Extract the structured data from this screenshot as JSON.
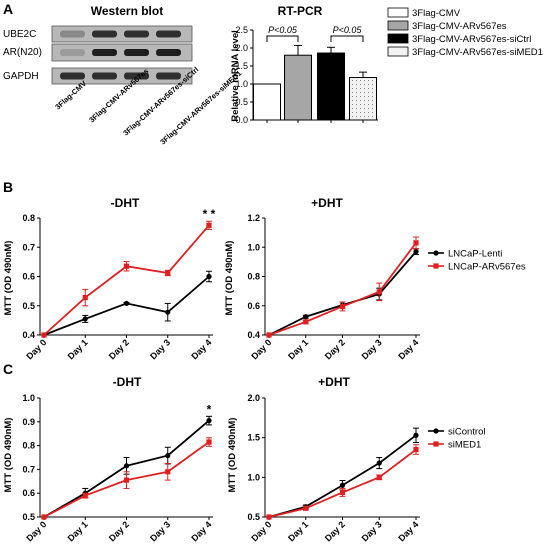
{
  "panels": {
    "a": "A",
    "b": "B",
    "c": "C"
  },
  "western": {
    "title": "Western blot",
    "rows": [
      "UBE2C",
      "AR(N20)",
      "GAPDH"
    ],
    "lanes": [
      "3Flag-CMV",
      "3Flag-CMV-ARv567es",
      "3Flag-CMV-ARv567es-siCtrl",
      "3Flag-CMV-ARv567es-siMED1"
    ],
    "band_intensity": [
      [
        0.35,
        0.85,
        0.85,
        0.85
      ],
      [
        0.25,
        0.95,
        0.95,
        0.95
      ],
      [
        0.85,
        0.85,
        0.85,
        0.85
      ]
    ]
  },
  "chart_data": [
    {
      "id": "rtpcr",
      "type": "bar",
      "title": "RT-PCR",
      "ylabel": "Relative mRNA level",
      "ylim": [
        0,
        2.5
      ],
      "yticks": [
        "0.0",
        "0.5",
        "1.0",
        "1.5",
        "2.0",
        "2.5"
      ],
      "categories": [
        "3Flag-CMV",
        "3Flag-CMV-ARv567es",
        "3Flag-CMV-ARv567es-siCtrl",
        "3Flag-CMV-ARv567es-siMED1"
      ],
      "values": [
        1.0,
        1.8,
        1.86,
        1.18
      ],
      "errors": [
        0.0,
        0.27,
        0.16,
        0.15
      ],
      "fills": [
        "#ffffff",
        "#a6a6a6",
        "#000000",
        "#f2f2f2"
      ],
      "annotations": [
        {
          "text": "P<0.05",
          "from": 0,
          "to": 1
        },
        {
          "text": "P<0.05",
          "from": 2,
          "to": 3
        }
      ],
      "legend": "right"
    },
    {
      "id": "b_minus",
      "type": "line",
      "title": "-DHT",
      "ylabel": "MTT (OD 490nM)",
      "categories": [
        "Day 0",
        "Day 1",
        "Day 2",
        "Day 3",
        "Day 4"
      ],
      "ylim": [
        0.4,
        0.8
      ],
      "yticks": [
        "0.4",
        "0.5",
        "0.6",
        "0.7",
        "0.8"
      ],
      "series": [
        {
          "name": "LNCaP-Lenti",
          "color": "#000000",
          "values": [
            0.4,
            0.455,
            0.508,
            0.478,
            0.6
          ],
          "errors": [
            0,
            0.012,
            0.003,
            0.03,
            0.018
          ]
        },
        {
          "name": "LNCaP-ARv567es",
          "color": "#e02020",
          "values": [
            0.4,
            0.528,
            0.635,
            0.612,
            0.775
          ],
          "errors": [
            0,
            0.028,
            0.016,
            0.009,
            0.014
          ]
        }
      ],
      "annotation": "* *"
    },
    {
      "id": "b_plus",
      "type": "line",
      "title": "+DHT",
      "ylabel": "MTT (OD 490nM)",
      "categories": [
        "Day 0",
        "Day 1",
        "Day 2",
        "Day 3",
        "Day 4"
      ],
      "ylim": [
        0.4,
        1.2
      ],
      "yticks": [
        "0.4",
        "0.6",
        "0.8",
        "1.0",
        "1.2"
      ],
      "series": [
        {
          "name": "LNCaP-Lenti",
          "color": "#000000",
          "values": [
            0.4,
            0.525,
            0.605,
            0.68,
            0.97
          ],
          "errors": [
            0,
            0.01,
            0.02,
            0.04,
            0.02
          ]
        },
        {
          "name": "LNCaP-ARv567es",
          "color": "#e02020",
          "values": [
            0.4,
            0.49,
            0.595,
            0.695,
            1.03
          ],
          "errors": [
            0,
            0.01,
            0.03,
            0.06,
            0.04
          ]
        }
      ],
      "legend": "right"
    },
    {
      "id": "c_minus",
      "type": "line",
      "title": "-DHT",
      "ylabel": "MTT (OD 490nM)",
      "categories": [
        "Day 0",
        "Day 1",
        "Day 2",
        "Day 3",
        "Day 4"
      ],
      "ylim": [
        0.5,
        1.0
      ],
      "yticks": [
        "0.5",
        "0.6",
        "0.7",
        "0.8",
        "0.9",
        "1.0"
      ],
      "series": [
        {
          "name": "siControl",
          "color": "#000000",
          "values": [
            0.5,
            0.6,
            0.715,
            0.758,
            0.905
          ],
          "errors": [
            0,
            0.02,
            0.035,
            0.035,
            0.018
          ]
        },
        {
          "name": "siMED1",
          "color": "#e02020",
          "values": [
            0.5,
            0.59,
            0.655,
            0.69,
            0.815
          ],
          "errors": [
            0,
            0.01,
            0.035,
            0.035,
            0.018
          ]
        }
      ],
      "annotation": "*"
    },
    {
      "id": "c_plus",
      "type": "line",
      "title": "+DHT",
      "ylabel": "MTT (OD 490nM)",
      "categories": [
        "Day 0",
        "Day 1",
        "Day 2",
        "Day 3",
        "Day 4"
      ],
      "ylim": [
        0.5,
        2.0
      ],
      "yticks": [
        "0.5",
        "1.0",
        "1.5",
        "2.0"
      ],
      "series": [
        {
          "name": "siControl",
          "color": "#000000",
          "values": [
            0.5,
            0.63,
            0.9,
            1.18,
            1.53
          ],
          "errors": [
            0,
            0.02,
            0.06,
            0.07,
            0.09
          ]
        },
        {
          "name": "siMED1",
          "color": "#e02020",
          "values": [
            0.5,
            0.61,
            0.81,
            1.0,
            1.35
          ],
          "errors": [
            0,
            0.02,
            0.05,
            0.03,
            0.06
          ]
        }
      ],
      "legend": "right"
    }
  ]
}
